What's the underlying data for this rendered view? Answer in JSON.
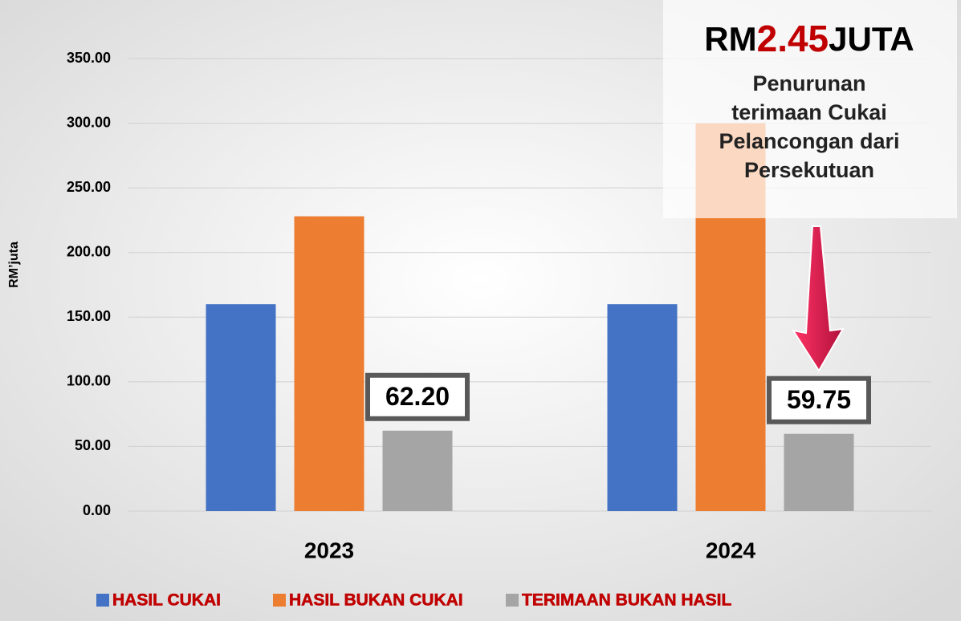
{
  "chart_data": {
    "type": "bar",
    "y_axis_label": "RM’juta",
    "categories": [
      "2023",
      "2024"
    ],
    "series": [
      {
        "name": "HASIL CUKAI",
        "color": "#4472c4",
        "values": [
          160,
          160
        ]
      },
      {
        "name": "HASIL BUKAN CUKAI",
        "color": "#ed7d31",
        "values": [
          228,
          300
        ]
      },
      {
        "name": "TERIMAAN BUKAN HASIL",
        "color": "#a5a5a5",
        "values": [
          62.2,
          59.75
        ],
        "value_labels": [
          "62.20",
          "59.75"
        ]
      }
    ],
    "ylim": [
      0,
      350
    ],
    "yticks": [
      {
        "value": 0,
        "label": "0.00"
      },
      {
        "value": 50,
        "label": "50.00"
      },
      {
        "value": 100,
        "label": "100.00"
      },
      {
        "value": 150,
        "label": "150.00"
      },
      {
        "value": 200,
        "label": "200.00"
      },
      {
        "value": 250,
        "label": "250.00"
      },
      {
        "value": 300,
        "label": "300.00"
      },
      {
        "value": 350,
        "label": "350.00"
      }
    ],
    "grid": true,
    "legend": "bottom",
    "annotation": {
      "headline": {
        "prefix": "RM",
        "highlight": "2.45",
        "suffix": "JUTA"
      },
      "lines": [
        "Penurunan",
        "terimaan Cukai",
        "Pelancongan dari",
        "Persekutuan"
      ]
    }
  }
}
